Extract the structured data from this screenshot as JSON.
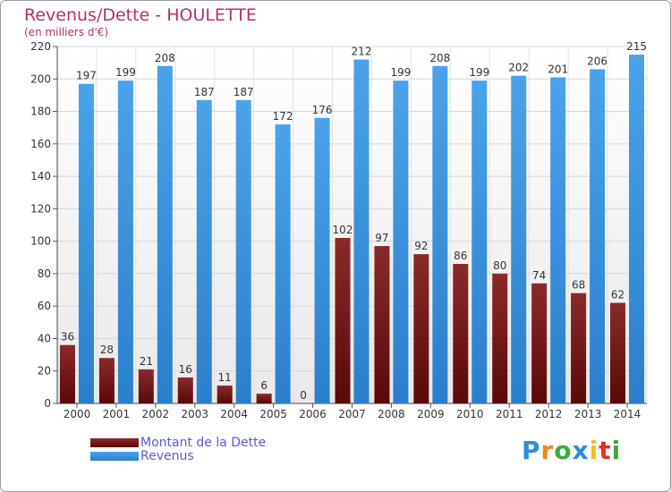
{
  "chart_data": {
    "type": "bar",
    "title": "Revenus/Dette - HOULETTE",
    "subtitle": "(en milliers d'€)",
    "categories": [
      "2000",
      "2001",
      "2002",
      "2003",
      "2004",
      "2005",
      "2006",
      "2007",
      "2008",
      "2009",
      "2010",
      "2011",
      "2012",
      "2013",
      "2014"
    ],
    "series": [
      {
        "name": "Montant de la Dette",
        "color": "#7a1a1a",
        "values": [
          36,
          28,
          21,
          16,
          11,
          6,
          0,
          102,
          97,
          92,
          86,
          80,
          74,
          68,
          62
        ]
      },
      {
        "name": "Revenus",
        "color": "#3a95e0",
        "values": [
          197,
          199,
          208,
          187,
          187,
          172,
          176,
          212,
          199,
          208,
          199,
          202,
          201,
          206,
          215
        ]
      }
    ],
    "ylim": [
      0,
      220
    ],
    "yticks": [
      0,
      20,
      40,
      60,
      80,
      100,
      120,
      140,
      160,
      180,
      200,
      220
    ],
    "grid": true,
    "legend_position": "bottom-left"
  },
  "brand": {
    "letters": [
      "P",
      "r",
      "o",
      "x",
      "i",
      "t",
      "i"
    ],
    "colors": [
      "#2a8fd8",
      "#f08a1c",
      "#3cab3c",
      "#2a8fd8",
      "#f0c21c",
      "#e0302a",
      "#3cab3c"
    ]
  }
}
